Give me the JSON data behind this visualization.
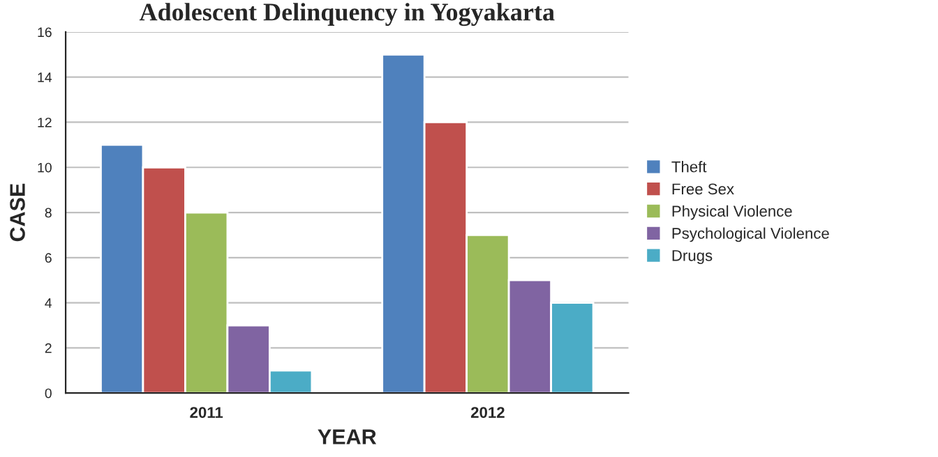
{
  "chart_data": {
    "type": "bar",
    "title": "Adolescent Delinquency in Yogyakarta",
    "xlabel": "YEAR",
    "ylabel": "CASE",
    "categories": [
      "2011",
      "2012"
    ],
    "series": [
      {
        "name": "Theft",
        "color": "#4f81bd",
        "values": [
          11,
          15
        ]
      },
      {
        "name": "Free Sex",
        "color": "#c0504d",
        "values": [
          10,
          12
        ]
      },
      {
        "name": "Physical Violence",
        "color": "#9bbb59",
        "values": [
          8,
          7
        ]
      },
      {
        "name": "Psychological Violence",
        "color": "#8064a2",
        "values": [
          3,
          5
        ]
      },
      {
        "name": "Drugs",
        "color": "#4bacc6",
        "values": [
          1,
          4
        ]
      }
    ],
    "ylim": [
      0,
      16
    ],
    "yticks": [
      0,
      2,
      4,
      6,
      8,
      10,
      12,
      14,
      16
    ],
    "grid": "y",
    "legend": "right"
  }
}
